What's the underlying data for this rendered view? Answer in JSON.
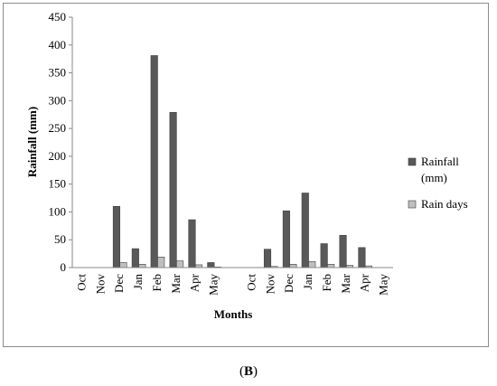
{
  "chart_data": {
    "type": "bar",
    "title": "",
    "xlabel": "Months",
    "ylabel": "Rainfall (mm)",
    "ylim": [
      0,
      450
    ],
    "yticks": [
      0,
      50,
      100,
      150,
      200,
      250,
      300,
      350,
      400,
      450
    ],
    "grid": false,
    "legend_position": "right",
    "categories": [
      "Oct",
      "Nov",
      "Dec",
      "Jan",
      "Feb",
      "Mar",
      "Apr",
      "May",
      "",
      "Oct",
      "Nov",
      "Dec",
      "Jan",
      "Feb",
      "Mar",
      "Apr",
      "May"
    ],
    "series": [
      {
        "name": "Rainfall (mm)",
        "legend_lines": [
          "Rainfall",
          "(mm)"
        ],
        "color": "#595959",
        "values": [
          0,
          0,
          110,
          34,
          381,
          279,
          86,
          9,
          0,
          0,
          33,
          102,
          134,
          43,
          58,
          36,
          0
        ]
      },
      {
        "name": "Rain days",
        "legend_lines": [
          "Rain days"
        ],
        "color": "#bfbfbf",
        "values": [
          0,
          0,
          9,
          6,
          19,
          12,
          5,
          1,
          0,
          0,
          2,
          6,
          11,
          6,
          4,
          3,
          0
        ]
      }
    ]
  },
  "caption": {
    "open": "(",
    "label": "B",
    "close": ")"
  }
}
